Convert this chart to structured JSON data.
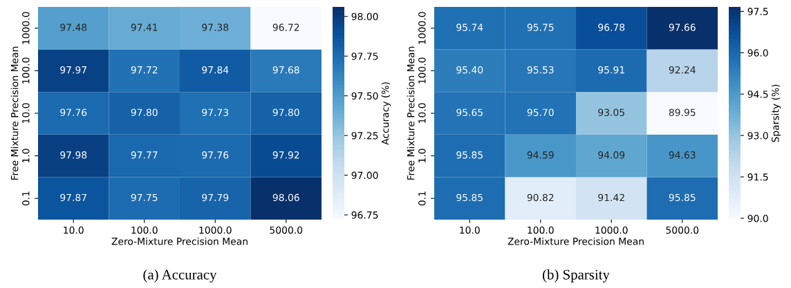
{
  "chart_data": [
    {
      "type": "heatmap",
      "title": "(a) Accuracy",
      "xlabel": "Zero-Mixture Precision Mean",
      "ylabel": "Free Mixture Precision Mean",
      "clabel": "Accuracy (%)",
      "categories": [
        "10.0",
        "100.0",
        "1000.0",
        "5000.0"
      ],
      "y_categories": [
        "1000.0",
        "100.0",
        "10.0",
        "1.0",
        "0.1"
      ],
      "cells": [
        [
          97.48,
          97.41,
          97.38,
          96.72
        ],
        [
          97.97,
          97.72,
          97.84,
          97.68
        ],
        [
          97.76,
          97.8,
          97.73,
          97.8
        ],
        [
          97.98,
          97.77,
          97.76,
          97.92
        ],
        [
          97.87,
          97.75,
          97.79,
          98.06
        ]
      ],
      "cell_labels": [
        [
          "97.48",
          "97.41",
          "97.38",
          "96.72"
        ],
        [
          "97.97",
          "97.72",
          "97.84",
          "97.68"
        ],
        [
          "97.76",
          "97.80",
          "97.73",
          "97.80"
        ],
        [
          "97.98",
          "97.77",
          "97.76",
          "97.92"
        ],
        [
          "97.87",
          "97.75",
          "97.79",
          "98.06"
        ]
      ],
      "clim": [
        96.72,
        98.06
      ],
      "cticks": [
        {
          "value": 96.75,
          "label": "96.75"
        },
        {
          "value": 97.0,
          "label": "97.00"
        },
        {
          "value": 97.25,
          "label": "97.25"
        },
        {
          "value": 97.5,
          "label": "97.50"
        },
        {
          "value": 97.75,
          "label": "97.75"
        },
        {
          "value": 98.0,
          "label": "98.00"
        }
      ]
    },
    {
      "type": "heatmap",
      "title": "(b) Sparsity",
      "xlabel": "Zero-Mixture Precision Mean",
      "ylabel": "Free Mixture Precision Mean",
      "clabel": "Sparsity (%)",
      "categories": [
        "10.0",
        "100.0",
        "1000.0",
        "5000.0"
      ],
      "y_categories": [
        "1000.0",
        "100.0",
        "10.0",
        "1.0",
        "0.1"
      ],
      "cells": [
        [
          95.74,
          95.75,
          96.78,
          97.66
        ],
        [
          95.4,
          95.53,
          95.91,
          92.24
        ],
        [
          95.65,
          95.7,
          93.05,
          89.95
        ],
        [
          95.85,
          94.59,
          94.09,
          94.63
        ],
        [
          95.85,
          90.82,
          91.42,
          95.85
        ]
      ],
      "cell_labels": [
        [
          "95.74",
          "95.75",
          "96.78",
          "97.66"
        ],
        [
          "95.40",
          "95.53",
          "95.91",
          "92.24"
        ],
        [
          "95.65",
          "95.70",
          "93.05",
          "89.95"
        ],
        [
          "95.85",
          "94.59",
          "94.09",
          "94.63"
        ],
        [
          "95.85",
          "90.82",
          "91.42",
          "95.85"
        ]
      ],
      "clim": [
        89.95,
        97.66
      ],
      "cticks": [
        {
          "value": 90.0,
          "label": "90.0"
        },
        {
          "value": 91.5,
          "label": "91.5"
        },
        {
          "value": 93.0,
          "label": "93.0"
        },
        {
          "value": 94.5,
          "label": "94.5"
        },
        {
          "value": 96.0,
          "label": "96.0"
        },
        {
          "value": 97.5,
          "label": "97.5"
        }
      ]
    }
  ]
}
